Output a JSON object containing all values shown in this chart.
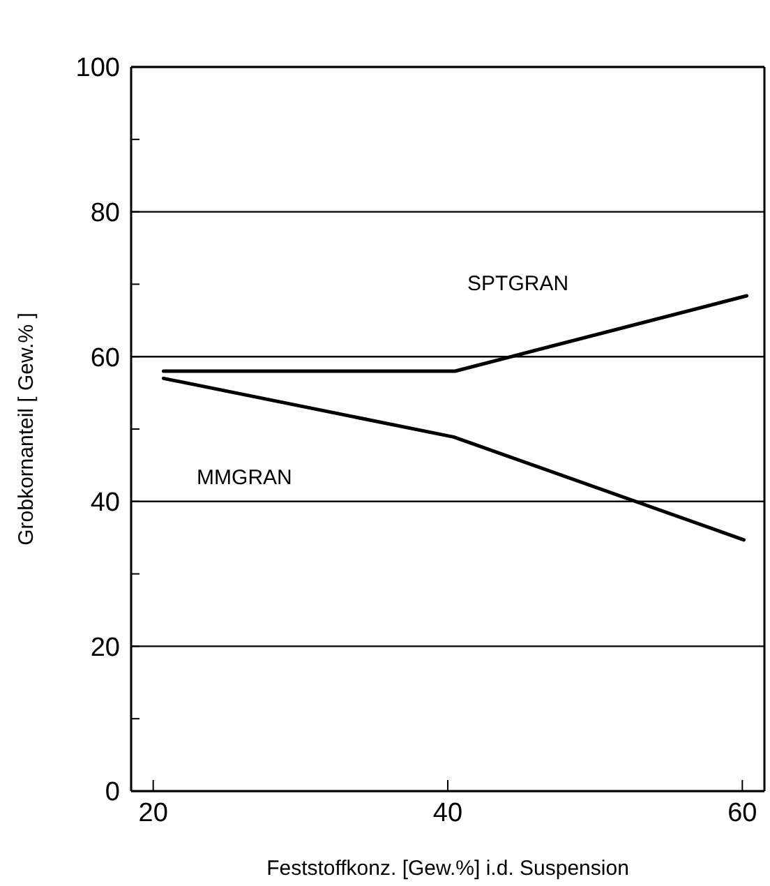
{
  "chart_data": {
    "type": "line",
    "xlabel": "Feststoffkonz. [Gew.%] i.d. Suspension",
    "ylabel": "Grobkornanteil  [ Gew.% ]",
    "xlim": [
      18.5,
      61.5
    ],
    "xticks": [
      20,
      40,
      60
    ],
    "ylim": [
      0,
      100
    ],
    "yticks": [
      0,
      {
        "value": 10,
        "label": null
      },
      20,
      {
        "value": 30,
        "label": null
      },
      40,
      {
        "value": 50,
        "label": null
      },
      60,
      {
        "value": 70,
        "label": null
      },
      80,
      {
        "value": 90,
        "label": null
      },
      100
    ],
    "grid": "y",
    "marker": "none",
    "line_style": "solid",
    "series": [
      {
        "name": "SPTGRAN",
        "color": "#000000",
        "x": [
          20.7,
          40.5,
          60.3
        ],
        "values": [
          58,
          58,
          68.4
        ]
      },
      {
        "name": "MMGRAN",
        "color": "#000000",
        "x": [
          20.7,
          40.4,
          60.1
        ],
        "values": [
          57,
          48.9,
          34.7
        ]
      }
    ]
  }
}
